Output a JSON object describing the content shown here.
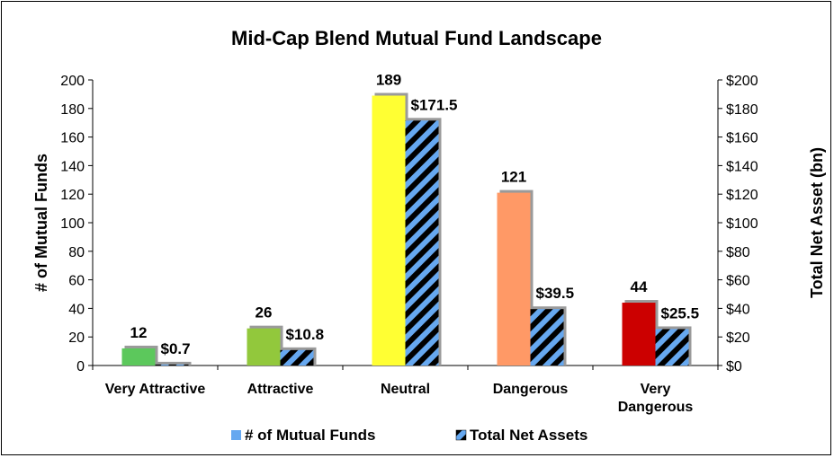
{
  "chart_data": {
    "type": "bar",
    "title": "Mid-Cap Blend Mutual Fund Landscape",
    "categories": [
      [
        "Very Attractive"
      ],
      [
        "Attractive"
      ],
      [
        "Neutral"
      ],
      [
        "Dangerous"
      ],
      [
        "Very",
        "Dangerous"
      ]
    ],
    "ylabel_left": "# of Mutual Funds",
    "ylabel_right": "Total Net Asset (bn)",
    "ylim_left": [
      0,
      200
    ],
    "ylim_right": [
      0,
      200
    ],
    "yticks_left": [
      "0",
      "20",
      "40",
      "60",
      "80",
      "100",
      "120",
      "140",
      "160",
      "180",
      "200"
    ],
    "yticks_right": [
      "$0",
      "$20",
      "$40",
      "$60",
      "$80",
      "$100",
      "$120",
      "$140",
      "$160",
      "$180",
      "$200"
    ],
    "series": [
      {
        "name": "# of Mutual Funds",
        "axis": "left",
        "values": [
          12,
          26,
          189,
          121,
          44
        ],
        "labels": [
          "12",
          "26",
          "189",
          "121",
          "44"
        ],
        "colors": [
          "#5CC85C",
          "#92C83C",
          "#FFFF33",
          "#FF9966",
          "#CC0000"
        ],
        "legend_color": "#66A8F0"
      },
      {
        "name": "Total Net Assets",
        "axis": "right",
        "values": [
          0.7,
          10.8,
          171.5,
          39.5,
          25.5
        ],
        "labels": [
          "$0.7",
          "$10.8",
          "$171.5",
          "$39.5",
          "$25.5"
        ],
        "pattern": "diagonal-stripes",
        "stripe_colors": [
          "#66A8F0",
          "#000000"
        ]
      }
    ],
    "grid": false,
    "legend_position": "bottom"
  }
}
